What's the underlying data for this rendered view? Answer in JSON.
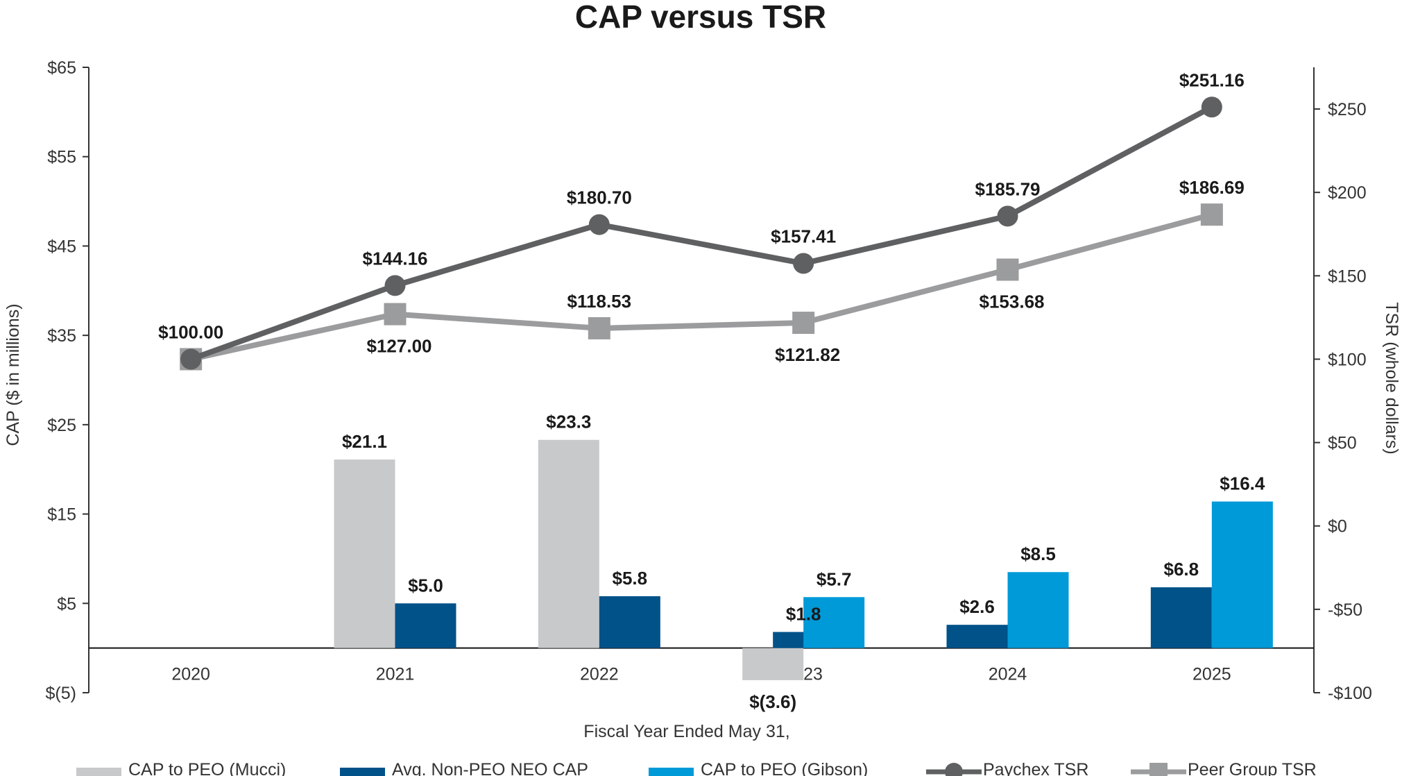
{
  "chart_data": {
    "type": "bar",
    "title": "CAP versus TSR",
    "xlabel": "Fiscal Year Ended May 31,",
    "ylabel": "CAP ($ in millions)",
    "y2label": "TSR (whole dollars)",
    "categories": [
      "2020",
      "2021",
      "2022",
      "2023",
      "2024",
      "2025"
    ],
    "ylim": [
      -5,
      65
    ],
    "y2lim": [
      -100,
      275
    ],
    "yticks": [
      -5,
      5,
      15,
      25,
      35,
      45,
      55,
      65
    ],
    "ytick_labels": [
      "$(5)",
      "$5",
      "$15",
      "$25",
      "$35",
      "$45",
      "$55",
      "$65"
    ],
    "y2ticks": [
      -100,
      -50,
      0,
      50,
      100,
      150,
      200,
      250
    ],
    "y2tick_labels": [
      "-$100",
      "-$50",
      "$0",
      "$50",
      "$100",
      "$150",
      "$200",
      "$250"
    ],
    "bar_series": [
      {
        "name": "CAP to PEO (Mucci)",
        "color": "#c8c9cb",
        "values": [
          null,
          21.1,
          23.3,
          -3.6,
          null,
          null
        ],
        "labels": [
          null,
          "$21.1",
          "$23.3",
          "$(3.6)",
          null,
          null
        ]
      },
      {
        "name": "Avg. Non-PEO NEO CAP",
        "color": "#005289",
        "values": [
          null,
          5.0,
          5.8,
          1.8,
          2.6,
          6.8
        ],
        "labels": [
          null,
          "$5.0",
          "$5.8",
          "$1.8",
          "$2.6",
          "$6.8"
        ]
      },
      {
        "name": "CAP to PEO (Gibson)",
        "color": "#009ad9",
        "values": [
          null,
          null,
          null,
          5.7,
          8.5,
          16.4
        ],
        "labels": [
          null,
          null,
          null,
          "$5.7",
          "$8.5",
          "$16.4"
        ]
      }
    ],
    "line_series": [
      {
        "name": "Paychex TSR",
        "color": "#5e6062",
        "marker": "circle",
        "axis": "right",
        "values": [
          100.0,
          144.16,
          180.7,
          157.41,
          185.79,
          251.16
        ],
        "labels": [
          "$100.00",
          "$144.16",
          "$180.70",
          "$157.41",
          "$185.79",
          "$251.16"
        ]
      },
      {
        "name": "Peer Group TSR",
        "color": "#9b9c9e",
        "marker": "square",
        "axis": "right",
        "values": [
          100.0,
          127.0,
          118.53,
          121.82,
          153.68,
          186.69
        ],
        "labels": [
          null,
          "$127.00",
          "$118.53",
          "$121.82",
          "$153.68",
          "$186.69"
        ]
      }
    ],
    "legend": [
      "CAP to PEO (Mucci)",
      "Avg. Non-PEO NEO CAP",
      "CAP to PEO (Gibson)",
      "Paychex TSR",
      "Peer Group TSR"
    ],
    "legend_position": "bottom"
  }
}
